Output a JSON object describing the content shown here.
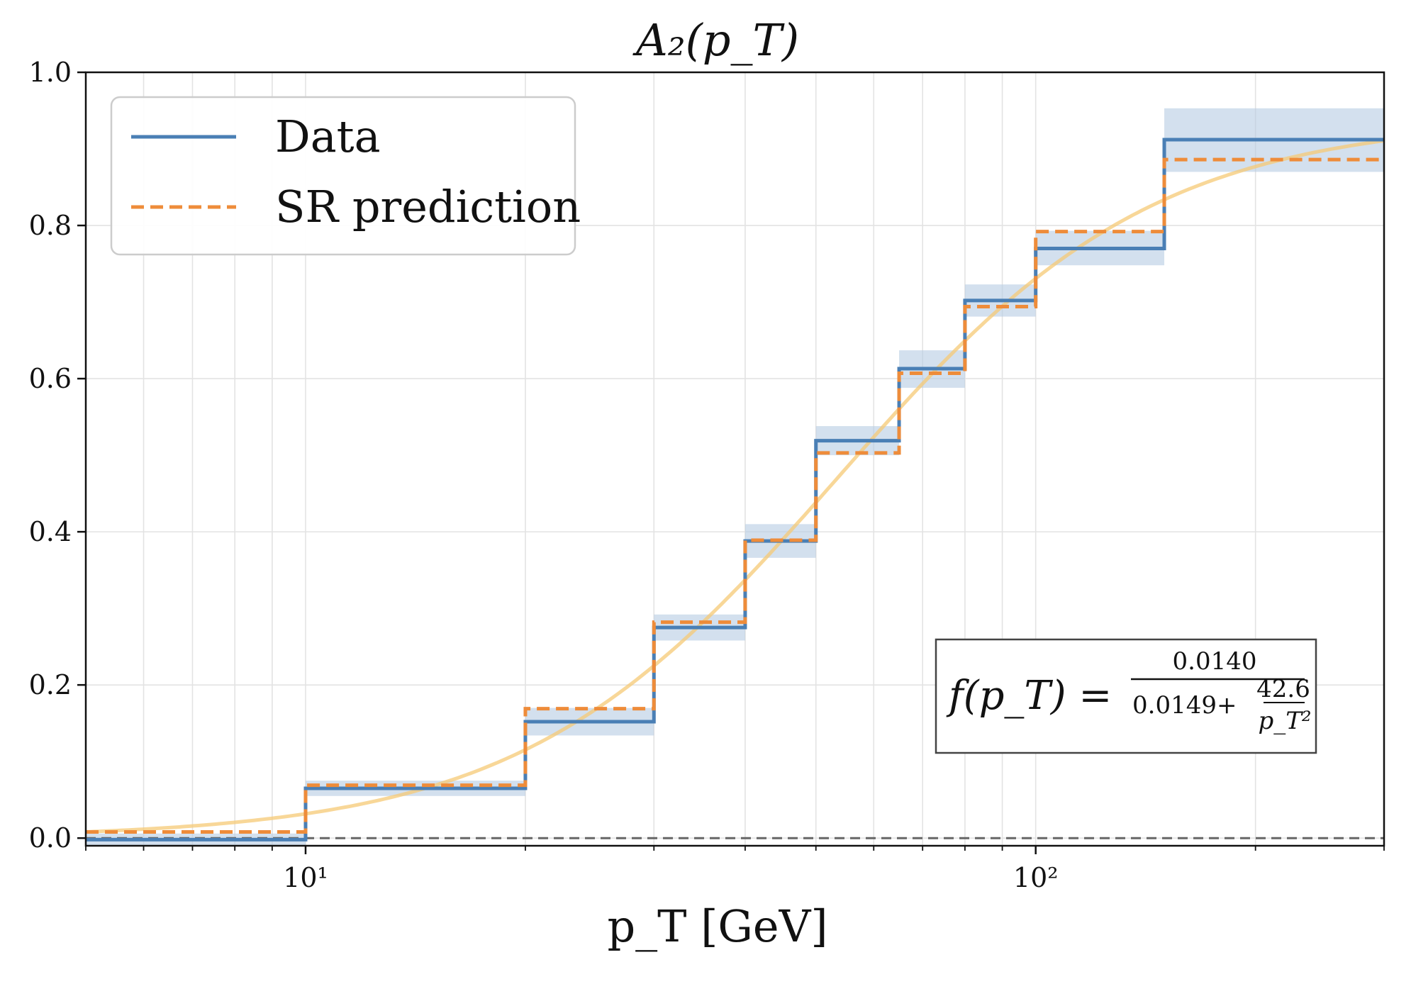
{
  "chart_data": {
    "type": "line",
    "title": "A₂(p_T)",
    "xlabel": "p_T [GeV]",
    "ylabel": "",
    "xscale": "log",
    "xlim": [
      5,
      300
    ],
    "ylim": [
      -0.01,
      1.0
    ],
    "grid": true,
    "x_tick_labels": [
      "10¹",
      "10²"
    ],
    "y_tick_labels": [
      "0.0",
      "0.2",
      "0.4",
      "0.6",
      "0.8",
      "1.0"
    ],
    "legend": {
      "placement": "top-left",
      "entries": [
        "Data",
        "SR prediction"
      ]
    },
    "bin_edges": [
      5,
      10,
      20,
      30,
      40,
      50,
      65,
      80,
      100,
      150,
      300
    ],
    "series": [
      {
        "name": "Data",
        "style": "solid-step",
        "color": "#4a7fb5",
        "values": [
          -0.002,
          0.065,
          0.152,
          0.275,
          0.388,
          0.519,
          0.613,
          0.702,
          0.77,
          0.912
        ],
        "band_low": [
          -0.01,
          0.055,
          0.134,
          0.258,
          0.366,
          0.5,
          0.588,
          0.681,
          0.748,
          0.87
        ],
        "band_high": [
          0.006,
          0.075,
          0.17,
          0.292,
          0.41,
          0.538,
          0.637,
          0.723,
          0.793,
          0.953
        ]
      },
      {
        "name": "SR prediction",
        "style": "dashed-step",
        "color": "#ee8c3a",
        "values": [
          0.008,
          0.069,
          0.169,
          0.282,
          0.389,
          0.503,
          0.607,
          0.694,
          0.792,
          0.886
        ]
      }
    ],
    "fit_curve": {
      "color": "#f5c976",
      "formula_a": 0.014,
      "formula_b": 0.0149,
      "formula_c": 42.6
    },
    "reference_line": {
      "y": 0.0,
      "style": "dashed",
      "color": "#666666"
    },
    "annotation": {
      "lhs": "f(p_T) =",
      "numerator": "0.0140",
      "denominator": "0.0149+",
      "inner_numerator": "42.6",
      "inner_denominator": "p_T²",
      "placement": "lower-right"
    },
    "colors": {
      "data": "#4a7fb5",
      "band": "#b5cce3",
      "prediction": "#ee8c3a",
      "fit": "#f5c976",
      "grid": "#e3e3e3"
    }
  }
}
